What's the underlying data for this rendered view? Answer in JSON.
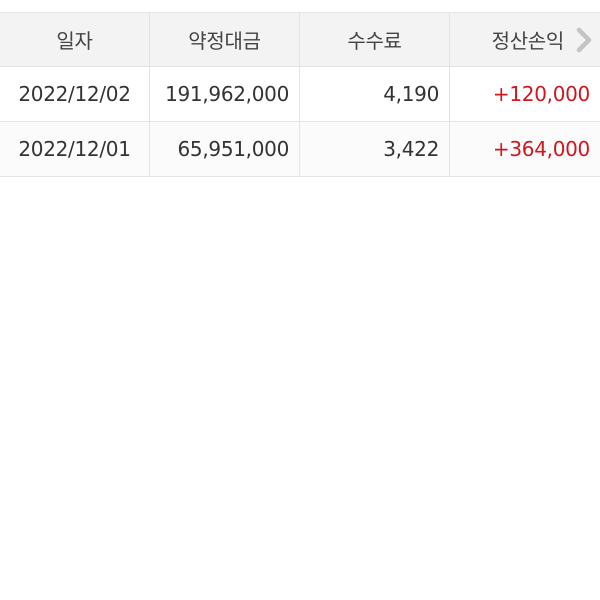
{
  "table": {
    "headers": [
      "일자",
      "약정대금",
      "수수료",
      "정산손익"
    ],
    "rows": [
      {
        "date": "2022/12/02",
        "amount": "191,962,000",
        "fee": "4,190",
        "pnl": "+120,000"
      },
      {
        "date": "2022/12/01",
        "amount": "65,951,000",
        "fee": "3,422",
        "pnl": "+364,000"
      }
    ],
    "scroll_right_icon": "chevron-right-icon"
  },
  "colors": {
    "positive": "#d0161e",
    "header_bg": "#f3f3f3"
  }
}
